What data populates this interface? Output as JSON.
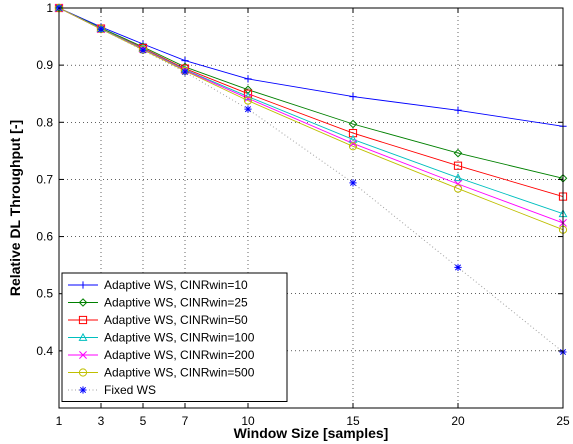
{
  "chart_data": {
    "type": "line",
    "title": "",
    "xlabel": "Window Size [samples]",
    "ylabel": "Relative DL Throughput [-]",
    "x": [
      1,
      3,
      5,
      7,
      10,
      15,
      20,
      25
    ],
    "x_ticks": [
      1,
      3,
      5,
      7,
      10,
      15,
      20,
      25
    ],
    "xlim": [
      1,
      25
    ],
    "ylim": [
      0.3,
      1.0
    ],
    "y_ticks": [
      0.4,
      0.5,
      0.6,
      0.7,
      0.8,
      0.9,
      1
    ],
    "grid": true,
    "legend_position": "bottom-left",
    "series": [
      {
        "name": "Adaptive WS, CINRwin=10",
        "color": "#0000ff",
        "marker": "plus",
        "line": "solid",
        "values": [
          1.0,
          0.967,
          0.937,
          0.908,
          0.876,
          0.845,
          0.821,
          0.793
        ]
      },
      {
        "name": "Adaptive WS, CINRwin=25",
        "color": "#008000",
        "marker": "diamond",
        "line": "solid",
        "values": [
          1.0,
          0.965,
          0.932,
          0.897,
          0.857,
          0.797,
          0.746,
          0.702
        ]
      },
      {
        "name": "Adaptive WS, CINRwin=50",
        "color": "#ff0000",
        "marker": "square",
        "line": "solid",
        "values": [
          1.0,
          0.964,
          0.93,
          0.894,
          0.85,
          0.781,
          0.724,
          0.67
        ]
      },
      {
        "name": "Adaptive WS, CINRwin=100",
        "color": "#00bfbf",
        "marker": "triangle",
        "line": "solid",
        "values": [
          1.0,
          0.964,
          0.929,
          0.892,
          0.845,
          0.77,
          0.703,
          0.64
        ]
      },
      {
        "name": "Adaptive WS, CINRwin=200",
        "color": "#ff00ff",
        "marker": "x",
        "line": "solid",
        "values": [
          1.0,
          0.963,
          0.928,
          0.891,
          0.842,
          0.763,
          0.692,
          0.624
        ]
      },
      {
        "name": "Adaptive WS, CINRwin=500",
        "color": "#bfbf00",
        "marker": "circle",
        "line": "solid",
        "values": [
          1.0,
          0.963,
          0.927,
          0.89,
          0.838,
          0.758,
          0.684,
          0.612
        ]
      },
      {
        "name": "Fixed WS",
        "color": "#0000ff",
        "marker": "star",
        "line": "dotted",
        "line_color": "#a0a0a0",
        "values": [
          1.0,
          0.963,
          0.926,
          0.888,
          0.823,
          0.694,
          0.546,
          0.398
        ]
      }
    ]
  }
}
